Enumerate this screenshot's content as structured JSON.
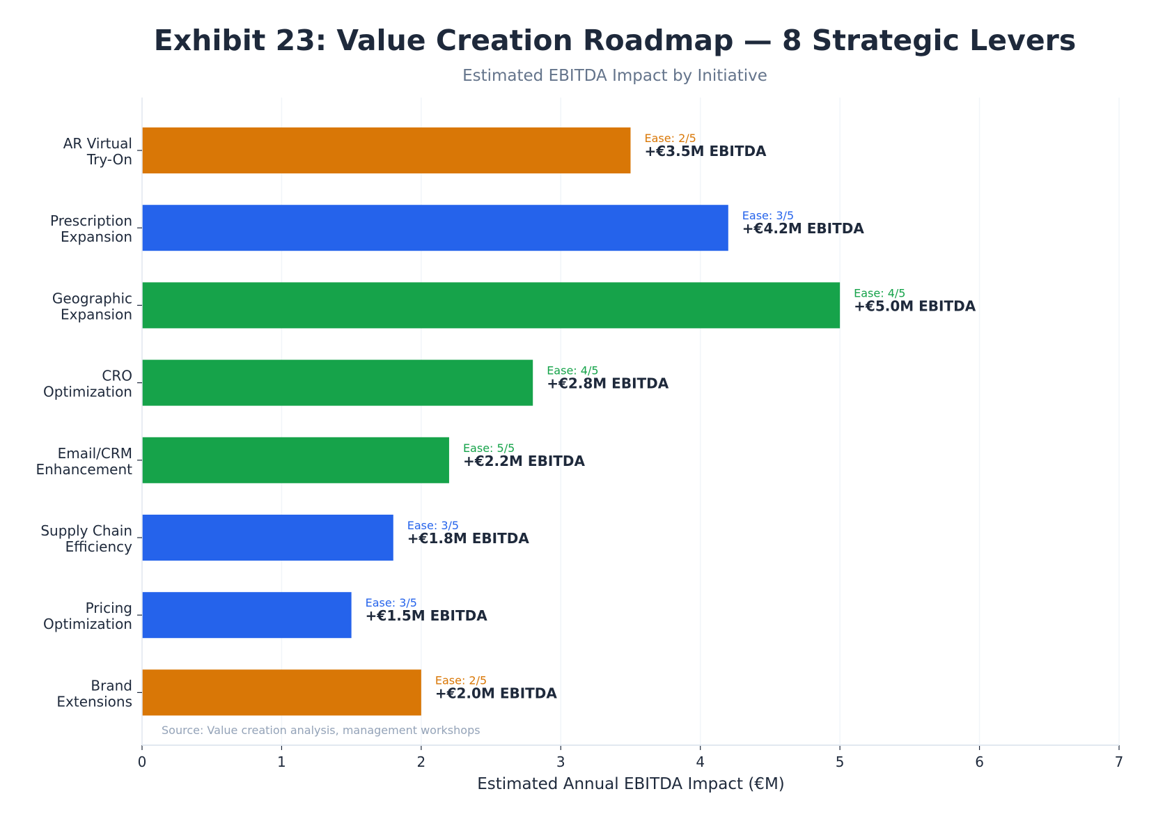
{
  "chart_data": {
    "type": "bar",
    "orientation": "horizontal",
    "title": "Exhibit 23: Value Creation Roadmap — 8 Strategic Levers",
    "subtitle": "Estimated EBITDA Impact by Initiative",
    "xlabel": "Estimated Annual EBITDA Impact (€M)",
    "ylabel": "",
    "xlim": [
      0,
      7
    ],
    "xticks": [
      "0",
      "1",
      "2",
      "3",
      "4",
      "5",
      "6",
      "7"
    ],
    "grid": "vertical",
    "source": "Source: Value creation analysis, management workshops",
    "categories": [
      [
        "AR Virtual",
        "Try-On"
      ],
      [
        "Prescription",
        "Expansion"
      ],
      [
        "Geographic",
        "Expansion"
      ],
      [
        "CRO",
        "Optimization"
      ],
      [
        "Email/CRM",
        "Enhancement"
      ],
      [
        "Supply Chain",
        "Efficiency"
      ],
      [
        "Pricing",
        "Optimization"
      ],
      [
        "Brand",
        "Extensions"
      ]
    ],
    "values": [
      3.5,
      4.2,
      5.0,
      2.8,
      2.2,
      1.8,
      1.5,
      2.0
    ],
    "ease": [
      2,
      3,
      4,
      4,
      5,
      3,
      3,
      2
    ],
    "ease_labels": [
      "Ease: 2/5",
      "Ease: 3/5",
      "Ease: 4/5",
      "Ease: 4/5",
      "Ease: 5/5",
      "Ease: 3/5",
      "Ease: 3/5",
      "Ease: 2/5"
    ],
    "value_labels": [
      "+€3.5M EBITDA",
      "+€4.2M EBITDA",
      "+€5.0M EBITDA",
      "+€2.8M EBITDA",
      "+€2.2M EBITDA",
      "+€1.8M EBITDA",
      "+€1.5M EBITDA",
      "+€2.0M EBITDA"
    ],
    "ease_colors": {
      "2": "#d97706",
      "3": "#2563eb",
      "4": "#16a34a",
      "5": "#16a34a"
    }
  },
  "colors": {
    "text": "#1e293b",
    "subtitle": "#64748b",
    "source": "#94a3b8",
    "grid": "#f1f5f9",
    "axis": "#e2e8f0"
  }
}
